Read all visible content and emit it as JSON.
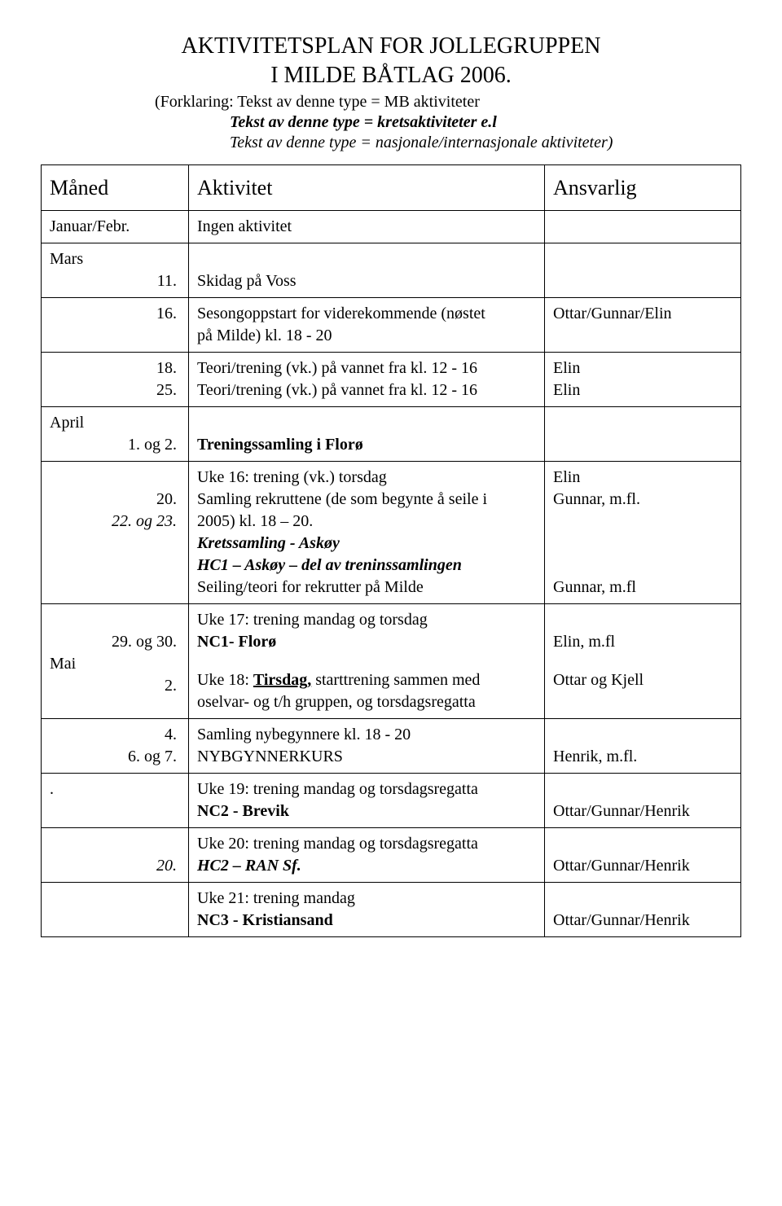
{
  "title_line1": "AKTIVITETSPLAN FOR JOLLEGRUPPEN",
  "title_line2": "I MILDE BÅTLAG 2006.",
  "explain1": "(Forklaring: Tekst av denne type = MB aktiviteter",
  "explain2": "Tekst av denne type = kretsaktiviteter e.l",
  "explain3": "Tekst av denne type = nasjonale/internasjonale aktiviteter)",
  "hdr": {
    "month": "Måned",
    "activity": "Aktivitet",
    "resp": "Ansvarlig"
  },
  "r1": {
    "month": "Januar/Febr.",
    "act": "Ingen aktivitet"
  },
  "r2": {
    "month_label": "Mars",
    "num": "11.",
    "act": "Skidag på Voss"
  },
  "r3": {
    "num": "16.",
    "act1": "Sesongoppstart for viderekommende (nøstet",
    "act2": "på Milde) kl. 18 - 20",
    "resp": "Ottar/Gunnar/Elin"
  },
  "r4": {
    "num1": "18.",
    "num2": "25.",
    "act1": "Teori/trening (vk.) på vannet fra kl. 12 - 16",
    "act2": "Teori/trening (vk.) på vannet fra kl. 12 - 16",
    "resp1": "Elin",
    "resp2": "Elin"
  },
  "r5": {
    "month_label": "April",
    "num": "1. og 2.",
    "act": "Treningssamling i Florø"
  },
  "r6": {
    "num1": "20.",
    "num2": "22. og 23.",
    "act_a": "Uke 16: trening (vk.) torsdag",
    "act_b": "Samling rekruttene (de som begynte å seile i",
    "act_c": "2005) kl. 18 – 20.",
    "act_d": "Kretssamling - Askøy",
    "act_e": "HC1 – Askøy – del av treninssamlingen",
    "act_f": "Seiling/teori for rekrutter på Milde",
    "resp1": "Elin",
    "resp2": "Gunnar, m.fl.",
    "resp3": "Gunnar, m.fl"
  },
  "r7": {
    "num1": "29. og 30.",
    "month_label": "Mai",
    "num2": "2.",
    "act_a": "Uke 17: trening mandag og torsdag",
    "act_b": "NC1- Florø",
    "act_c1": "Uke 18: ",
    "act_c_u": "Tirsdag,",
    "act_c2": " starttrening sammen med",
    "act_d": "oselvar- og t/h gruppen, og torsdagsregatta",
    "resp1": "Elin, m.fl",
    "resp2": "Ottar og Kjell"
  },
  "r8": {
    "num1": "4.",
    "num2": "6. og 7.",
    "act1": "Samling nybegynnere kl. 18 - 20",
    "act2": "NYBGYNNERKURS",
    "resp": "Henrik, m.fl."
  },
  "r9": {
    "month": ".",
    "act1": "Uke 19: trening mandag og torsdagsregatta",
    "act2": "NC2 - Brevik",
    "resp": "Ottar/Gunnar/Henrik"
  },
  "r10": {
    "num": "20.",
    "act1": "Uke 20: trening mandag og torsdagsregatta",
    "act2": "HC2 – RAN Sf.",
    "resp": "Ottar/Gunnar/Henrik"
  },
  "r11": {
    "act1": "Uke 21: trening mandag",
    "act2": "NC3 - Kristiansand",
    "resp": "Ottar/Gunnar/Henrik"
  }
}
